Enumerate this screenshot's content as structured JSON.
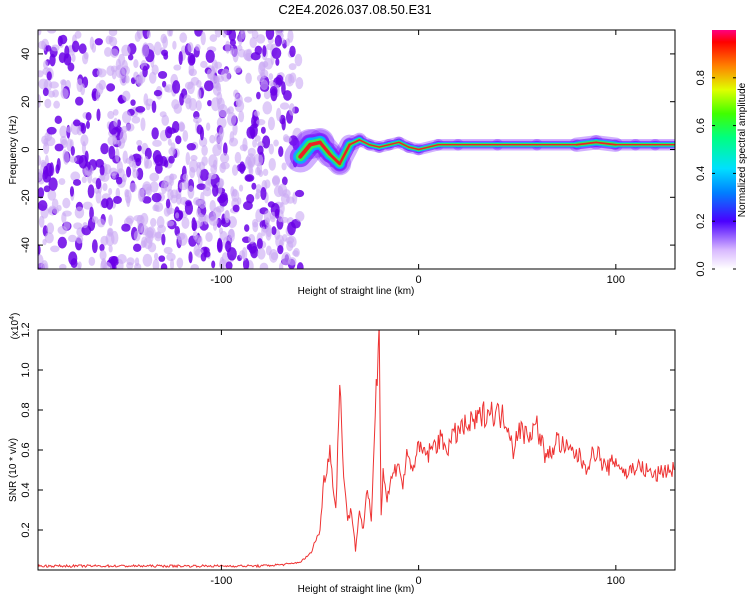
{
  "title": "C2E4.2026.037.08.50.E31",
  "colors": {
    "series": "#ee3333",
    "ridge_outer": "#7a1cff",
    "ridge_mid": "#00b4ff",
    "ridge_inner": "#33ee55",
    "ridge_core": "#ee2222",
    "noise_dark": "#6a00e6",
    "noise_light": "#c9a8f4"
  },
  "chart_data": [
    {
      "type": "heatmap",
      "xlabel": "Height of straight line (km)",
      "ylabel": "Frequency (Hz)",
      "xlim": [
        -193,
        130
      ],
      "ylim": [
        -50,
        50
      ],
      "xticks": [
        -100,
        0,
        100
      ],
      "xtick_labels": [
        "-100",
        "0",
        "100"
      ],
      "yticks": [
        -40,
        -20,
        0,
        20,
        40
      ],
      "ytick_labels": [
        "-40",
        "-20",
        "0",
        "20",
        "40"
      ],
      "noise_region_x": [
        -193,
        -60
      ],
      "ridge": {
        "x": [
          -60,
          -55,
          -50,
          -45,
          -40,
          -35,
          -30,
          -25,
          -20,
          -15,
          -10,
          -5,
          0,
          10,
          20,
          40,
          60,
          80,
          90,
          100,
          110,
          120,
          130
        ],
        "freq": [
          -3,
          2,
          3,
          -2,
          -6,
          2,
          4,
          2,
          1,
          2,
          3,
          1,
          0,
          2,
          2,
          2,
          2,
          2,
          3,
          2,
          2,
          2,
          2
        ],
        "halfwidth": [
          6,
          5,
          5,
          4,
          4,
          3,
          2,
          2,
          2,
          2,
          2,
          2,
          2,
          2,
          2,
          2,
          2,
          2,
          3,
          2,
          2,
          2,
          2
        ]
      },
      "colorbar": {
        "label": "Normalized spectral amplitude",
        "range": [
          0,
          1
        ],
        "ticks": [
          0,
          0.2,
          0.4,
          0.6,
          0.8
        ],
        "tick_labels": [
          "0.0",
          "0.2",
          "0.4",
          "0.6",
          "0.8"
        ]
      }
    },
    {
      "type": "line",
      "xlabel": "Height of straight line (km)",
      "ylabel": "SNR (10 * v/v)",
      "scale_label": "(x10",
      "scale_exponent": "4",
      "scale_suffix": ")",
      "xlim": [
        -193,
        130
      ],
      "ylim": [
        0,
        1.2
      ],
      "xticks": [
        -100,
        0,
        100
      ],
      "xtick_labels": [
        "-100",
        "0",
        "100"
      ],
      "yticks": [
        0.2,
        0.4,
        0.6,
        0.8,
        1.0,
        1.2
      ],
      "ytick_labels": [
        "0.2",
        "0.4",
        "0.6",
        "0.8",
        "1.0",
        "1.2"
      ],
      "series": [
        {
          "name": "SNR",
          "x": [
            -193,
            -180,
            -160,
            -140,
            -120,
            -100,
            -80,
            -65,
            -60,
            -55,
            -50,
            -48,
            -45,
            -42,
            -40,
            -38,
            -36,
            -34,
            -32,
            -30,
            -28,
            -26,
            -24,
            -22,
            -20,
            -19,
            -18,
            -16,
            -14,
            -12,
            -10,
            -8,
            -6,
            -4,
            -2,
            0,
            5,
            10,
            15,
            20,
            25,
            30,
            35,
            40,
            45,
            48,
            50,
            55,
            60,
            65,
            70,
            75,
            80,
            85,
            90,
            95,
            100,
            105,
            110,
            115,
            120,
            125,
            130
          ],
          "y": [
            0.02,
            0.02,
            0.02,
            0.02,
            0.02,
            0.02,
            0.02,
            0.03,
            0.04,
            0.08,
            0.2,
            0.45,
            0.6,
            0.3,
            0.92,
            0.5,
            0.25,
            0.3,
            0.1,
            0.3,
            0.2,
            0.4,
            0.25,
            0.8,
            1.2,
            0.3,
            0.5,
            0.35,
            0.45,
            0.5,
            0.55,
            0.4,
            0.6,
            0.5,
            0.55,
            0.6,
            0.58,
            0.65,
            0.62,
            0.7,
            0.72,
            0.75,
            0.8,
            0.78,
            0.75,
            0.6,
            0.7,
            0.68,
            0.72,
            0.55,
            0.65,
            0.6,
            0.58,
            0.52,
            0.6,
            0.5,
            0.55,
            0.48,
            0.52,
            0.5,
            0.47,
            0.5,
            0.5
          ]
        }
      ]
    }
  ]
}
